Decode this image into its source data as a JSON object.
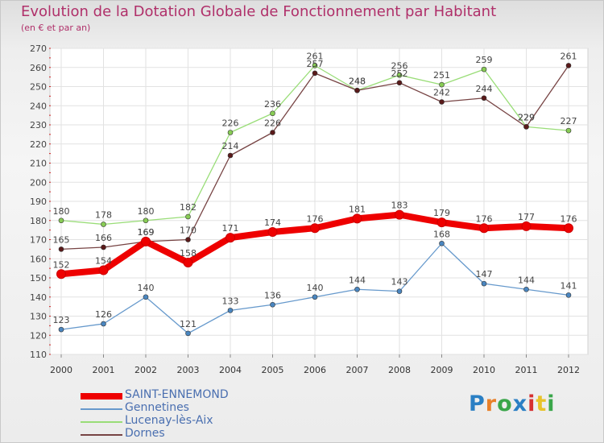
{
  "header": {
    "title": "Evolution de la Dotation Globale de Fonctionnement par Habitant",
    "subtitle": "(en € et par an)"
  },
  "logo": {
    "text": "Proxiti",
    "letters": [
      "P",
      "r",
      "o",
      "x",
      "i",
      "t",
      "i"
    ],
    "letter_colors": [
      "#2a7fc4",
      "#e8802a",
      "#3aa64a",
      "#2a7fc4",
      "#d63030",
      "#e8c32a",
      "#3aa64a"
    ]
  },
  "chart_data": {
    "type": "line",
    "title": "Evolution de la Dotation Globale de Fonctionnement par Habitant",
    "subtitle": "(en € et par an)",
    "xlabel": "",
    "ylabel": "",
    "x": [
      "2000",
      "2001",
      "2002",
      "2003",
      "2004",
      "2005",
      "2006",
      "2007",
      "2008",
      "2009",
      "2010",
      "2011",
      "2012"
    ],
    "ylim": [
      110,
      270
    ],
    "yticks": [
      110,
      120,
      130,
      140,
      150,
      160,
      170,
      180,
      190,
      200,
      210,
      220,
      230,
      240,
      250,
      260,
      270
    ],
    "grid": true,
    "legend_position": "bottom-left",
    "series": [
      {
        "name": "SAINT-ENNEMOND",
        "color": "#ee0000",
        "values": [
          152,
          154,
          169,
          158,
          171,
          174,
          176,
          181,
          183,
          179,
          176,
          177,
          176
        ],
        "line_width": 8
      },
      {
        "name": "Gennetines",
        "color": "#6699cc",
        "values": [
          123,
          126,
          140,
          121,
          133,
          136,
          140,
          144,
          143,
          168,
          147,
          144,
          141
        ],
        "line_width": 1.3
      },
      {
        "name": "Lucenay-lès-Aix",
        "color": "#99dd77",
        "values": [
          180,
          178,
          180,
          182,
          226,
          236,
          261,
          248,
          256,
          251,
          259,
          229,
          227
        ],
        "line_width": 1.3
      },
      {
        "name": "Dornes",
        "color": "#774444",
        "values": [
          165,
          166,
          169,
          170,
          214,
          226,
          257,
          248,
          252,
          242,
          244,
          229,
          261
        ],
        "line_width": 1.3
      }
    ]
  }
}
